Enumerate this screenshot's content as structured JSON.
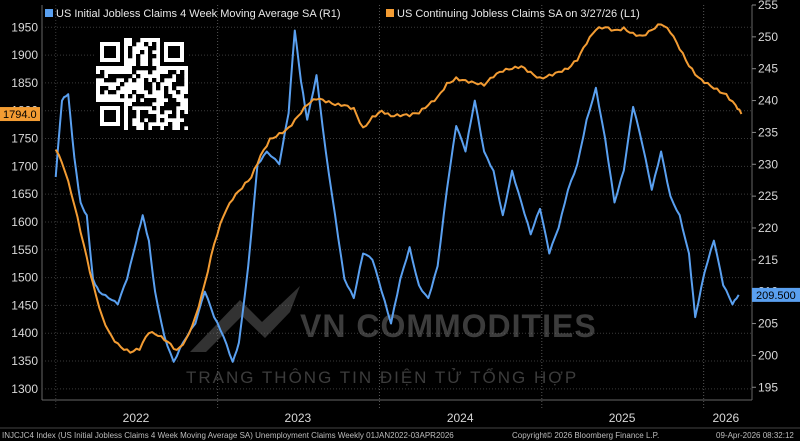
{
  "legend": {
    "series1": "US Initial Jobless Claims 4 Week Moving Average SA  (R1)",
    "series2": "US Continuing Jobless Claims SA  on 3/27/26  (L1)"
  },
  "footer": {
    "left": "INJCJC4 Index (US Initial Jobless Claims 4 Week Moving Average SA) Unemployment Claims Weekly 01JAN2022-03APR2026",
    "center": "Copyright© 2026 Bloomberg Finance L.P.",
    "right": "09-Apr-2026 08:32:12"
  },
  "watermark": {
    "brand": "VN COMMODITIES",
    "tagline": "TRANG THÔNG TIN ĐIỆN TỬ TỔNG HỢP"
  },
  "colors": {
    "initial": "#5aa0f0",
    "continuing": "#f39c33",
    "grid": "#3a3a3a"
  },
  "chart_data": {
    "type": "line",
    "x_ticks": [
      "2022",
      "2023",
      "2024",
      "2025",
      "2026"
    ],
    "left_axis": {
      "ylim": [
        1280,
        1990
      ],
      "ticks": [
        1300,
        1350,
        1400,
        1450,
        1500,
        1550,
        1600,
        1650,
        1700,
        1750,
        1800,
        1850,
        1900,
        1950
      ]
    },
    "right_axis": {
      "ylim": [
        193,
        255
      ],
      "ticks": [
        195,
        200,
        205,
        210,
        215,
        220,
        225,
        230,
        235,
        240,
        245,
        250,
        255
      ]
    },
    "grid": true,
    "legend_position": "top-left",
    "series": [
      {
        "name": "US Initial Jobless Claims 4 Week Moving Average SA",
        "axis": "right",
        "last_value_label": "209.500",
        "points": [
          [
            "2022-01-01",
            228
          ],
          [
            "2022-01-15",
            240
          ],
          [
            "2022-01-29",
            241
          ],
          [
            "2022-02-12",
            231
          ],
          [
            "2022-02-26",
            224
          ],
          [
            "2022-03-12",
            222
          ],
          [
            "2022-03-26",
            212
          ],
          [
            "2022-04-09",
            210
          ],
          [
            "2022-04-30",
            209
          ],
          [
            "2022-05-21",
            208
          ],
          [
            "2022-06-11",
            212
          ],
          [
            "2022-07-02",
            218
          ],
          [
            "2022-07-16",
            222
          ],
          [
            "2022-07-30",
            218
          ],
          [
            "2022-08-13",
            210
          ],
          [
            "2022-09-03",
            203
          ],
          [
            "2022-09-24",
            199
          ],
          [
            "2022-10-15",
            202
          ],
          [
            "2022-11-12",
            205
          ],
          [
            "2022-12-03",
            210
          ],
          [
            "2022-12-24",
            206
          ],
          [
            "2023-01-14",
            203
          ],
          [
            "2023-02-04",
            199
          ],
          [
            "2023-02-18",
            202
          ],
          [
            "2023-03-11",
            214
          ],
          [
            "2023-04-01",
            230
          ],
          [
            "2023-04-22",
            232
          ],
          [
            "2023-05-20",
            230
          ],
          [
            "2023-06-10",
            238
          ],
          [
            "2023-06-24",
            251
          ],
          [
            "2023-07-08",
            243
          ],
          [
            "2023-07-22",
            237
          ],
          [
            "2023-08-12",
            244
          ],
          [
            "2023-09-02",
            232
          ],
          [
            "2023-09-23",
            222
          ],
          [
            "2023-10-14",
            212
          ],
          [
            "2023-11-04",
            209
          ],
          [
            "2023-11-25",
            216
          ],
          [
            "2023-12-16",
            215
          ],
          [
            "2024-01-06",
            210
          ],
          [
            "2024-01-27",
            205
          ],
          [
            "2024-02-17",
            212
          ],
          [
            "2024-03-09",
            217
          ],
          [
            "2024-03-30",
            211
          ],
          [
            "2024-04-20",
            209
          ],
          [
            "2024-05-11",
            214
          ],
          [
            "2024-06-01",
            226
          ],
          [
            "2024-06-22",
            236
          ],
          [
            "2024-07-13",
            232
          ],
          [
            "2024-08-03",
            240
          ],
          [
            "2024-08-24",
            232
          ],
          [
            "2024-09-14",
            229
          ],
          [
            "2024-10-05",
            222
          ],
          [
            "2024-10-26",
            229
          ],
          [
            "2024-11-16",
            224
          ],
          [
            "2024-12-07",
            219
          ],
          [
            "2024-12-28",
            223
          ],
          [
            "2025-01-18",
            216
          ],
          [
            "2025-02-08",
            220
          ],
          [
            "2025-03-01",
            226
          ],
          [
            "2025-03-22",
            230
          ],
          [
            "2025-04-12",
            237
          ],
          [
            "2025-05-03",
            242
          ],
          [
            "2025-05-24",
            234
          ],
          [
            "2025-06-14",
            224
          ],
          [
            "2025-07-05",
            229
          ],
          [
            "2025-07-26",
            239
          ],
          [
            "2025-08-16",
            233
          ],
          [
            "2025-09-06",
            226
          ],
          [
            "2025-09-27",
            232
          ],
          [
            "2025-10-18",
            225
          ],
          [
            "2025-11-08",
            222
          ],
          [
            "2025-11-29",
            216
          ],
          [
            "2025-12-13",
            206
          ],
          [
            "2026-01-03",
            213
          ],
          [
            "2026-01-24",
            218
          ],
          [
            "2026-02-14",
            211
          ],
          [
            "2026-03-07",
            208
          ],
          [
            "2026-03-21",
            209.5
          ]
        ]
      },
      {
        "name": "US Continuing Jobless Claims SA",
        "axis": "left",
        "last_value_label": "1794.0",
        "points": [
          [
            "2022-01-01",
            1730
          ],
          [
            "2022-01-22",
            1690
          ],
          [
            "2022-02-12",
            1630
          ],
          [
            "2022-03-05",
            1560
          ],
          [
            "2022-03-26",
            1490
          ],
          [
            "2022-04-16",
            1430
          ],
          [
            "2022-05-07",
            1395
          ],
          [
            "2022-05-28",
            1375
          ],
          [
            "2022-06-18",
            1365
          ],
          [
            "2022-07-09",
            1370
          ],
          [
            "2022-07-30",
            1400
          ],
          [
            "2022-08-20",
            1395
          ],
          [
            "2022-09-10",
            1385
          ],
          [
            "2022-10-01",
            1370
          ],
          [
            "2022-10-22",
            1390
          ],
          [
            "2022-11-12",
            1430
          ],
          [
            "2022-12-03",
            1490
          ],
          [
            "2022-12-24",
            1560
          ],
          [
            "2023-01-14",
            1610
          ],
          [
            "2023-02-04",
            1640
          ],
          [
            "2023-02-25",
            1660
          ],
          [
            "2023-03-18",
            1680
          ],
          [
            "2023-04-08",
            1720
          ],
          [
            "2023-04-29",
            1750
          ],
          [
            "2023-05-20",
            1760
          ],
          [
            "2023-06-10",
            1770
          ],
          [
            "2023-07-01",
            1790
          ],
          [
            "2023-07-22",
            1810
          ],
          [
            "2023-08-12",
            1820
          ],
          [
            "2023-09-02",
            1815
          ],
          [
            "2023-09-23",
            1810
          ],
          [
            "2023-10-14",
            1810
          ],
          [
            "2023-11-04",
            1805
          ],
          [
            "2023-11-25",
            1770
          ],
          [
            "2023-12-16",
            1790
          ],
          [
            "2024-01-06",
            1800
          ],
          [
            "2024-01-27",
            1790
          ],
          [
            "2024-02-17",
            1790
          ],
          [
            "2024-03-09",
            1790
          ],
          [
            "2024-03-30",
            1795
          ],
          [
            "2024-04-20",
            1810
          ],
          [
            "2024-05-11",
            1825
          ],
          [
            "2024-06-01",
            1850
          ],
          [
            "2024-06-22",
            1860
          ],
          [
            "2024-07-13",
            1855
          ],
          [
            "2024-08-03",
            1850
          ],
          [
            "2024-08-24",
            1845
          ],
          [
            "2024-09-14",
            1860
          ],
          [
            "2024-10-05",
            1870
          ],
          [
            "2024-10-26",
            1875
          ],
          [
            "2024-11-16",
            1880
          ],
          [
            "2024-12-07",
            1870
          ],
          [
            "2024-12-28",
            1860
          ],
          [
            "2025-01-18",
            1865
          ],
          [
            "2025-02-08",
            1870
          ],
          [
            "2025-03-01",
            1875
          ],
          [
            "2025-03-22",
            1890
          ],
          [
            "2025-04-12",
            1920
          ],
          [
            "2025-05-03",
            1945
          ],
          [
            "2025-05-24",
            1950
          ],
          [
            "2025-06-14",
            1945
          ],
          [
            "2025-07-05",
            1950
          ],
          [
            "2025-07-26",
            1940
          ],
          [
            "2025-08-16",
            1935
          ],
          [
            "2025-09-06",
            1945
          ],
          [
            "2025-09-27",
            1955
          ],
          [
            "2025-10-18",
            1940
          ],
          [
            "2025-11-08",
            1910
          ],
          [
            "2025-11-29",
            1880
          ],
          [
            "2025-12-20",
            1860
          ],
          [
            "2026-01-10",
            1850
          ],
          [
            "2026-01-31",
            1840
          ],
          [
            "2026-02-21",
            1830
          ],
          [
            "2026-03-14",
            1810
          ],
          [
            "2026-03-27",
            1794
          ]
        ]
      }
    ]
  }
}
